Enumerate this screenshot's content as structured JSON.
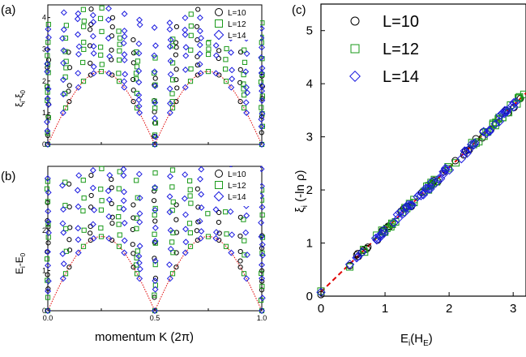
{
  "chart_data": [
    {
      "panel": "(a)",
      "type": "scatter",
      "ylabel": "ξi-ξ0",
      "xlabel": "",
      "xlim": [
        0.0,
        1.0
      ],
      "ylim": [
        0,
        4.4
      ],
      "yticks": [
        0,
        1,
        2,
        3,
        4
      ],
      "xticks": [],
      "legend": [
        "L=10",
        "L=12",
        "L=14"
      ],
      "legend_position": "top-right",
      "curve": {
        "type": "dispersion",
        "amplitude": 2.3,
        "style": "dotted",
        "color": "#e00000"
      }
    },
    {
      "panel": "(b)",
      "type": "scatter",
      "ylabel": "Ei-E0",
      "xlabel": "momentum K (2π)",
      "xlim": [
        0.0,
        1.0
      ],
      "ylim": [
        0,
        3.6
      ],
      "yticks": [
        0,
        1,
        2
      ],
      "xticks": [
        "0.0",
        "0.5",
        "1.0"
      ],
      "legend": [
        "L=10",
        "L=12",
        "L=14"
      ],
      "legend_position": "top-right",
      "curve": {
        "type": "dispersion",
        "amplitude": 1.85,
        "style": "dotted",
        "color": "#e00000"
      }
    },
    {
      "panel": "(c)",
      "type": "scatter",
      "ylabel": "ξi (-ln ρ)",
      "xlabel": "Ei(HE)",
      "xlim": [
        0,
        3.2
      ],
      "ylim": [
        0,
        5.5
      ],
      "xticks": [
        0,
        1,
        2,
        3
      ],
      "yticks": [
        0,
        1,
        2,
        3,
        4,
        5
      ],
      "legend": [
        "L=10",
        "L=12",
        "L=14"
      ],
      "legend_position": "top-left",
      "fit_line": {
        "slope": 1.17,
        "intercept": 0.08,
        "style": "dashed",
        "color": "#e00000"
      }
    }
  ],
  "series_styles": [
    {
      "name": "L=10",
      "marker": "circle",
      "color": "#000000"
    },
    {
      "name": "L=12",
      "marker": "square",
      "color": "#1a9a1a"
    },
    {
      "name": "L=14",
      "marker": "diamond",
      "color": "#1a1adf"
    }
  ],
  "panel_labels": {
    "a": "(a)",
    "b": "(b)",
    "c": "(c)"
  },
  "axis_text": {
    "a_ylabel_main": "ξ",
    "a_ylabel_sub": "i",
    "a_ylabel_rest": "-ξ",
    "a_ylabel_sub2": "0",
    "b_ylabel_main": "E",
    "b_ylabel_sub": "i",
    "b_ylabel_rest": "-E",
    "b_ylabel_sub2": "0",
    "c_ylabel_main": "ξ",
    "c_ylabel_sub": "i",
    "c_ylabel_rest": " (-ln ρ)",
    "c_xlabel_main": "E",
    "c_xlabel_sub": "i",
    "c_xlabel_rest": "(H",
    "c_xlabel_sub2": "E",
    "c_xlabel_end": ")",
    "bottom_xlabel": "momentum K (2π)"
  }
}
